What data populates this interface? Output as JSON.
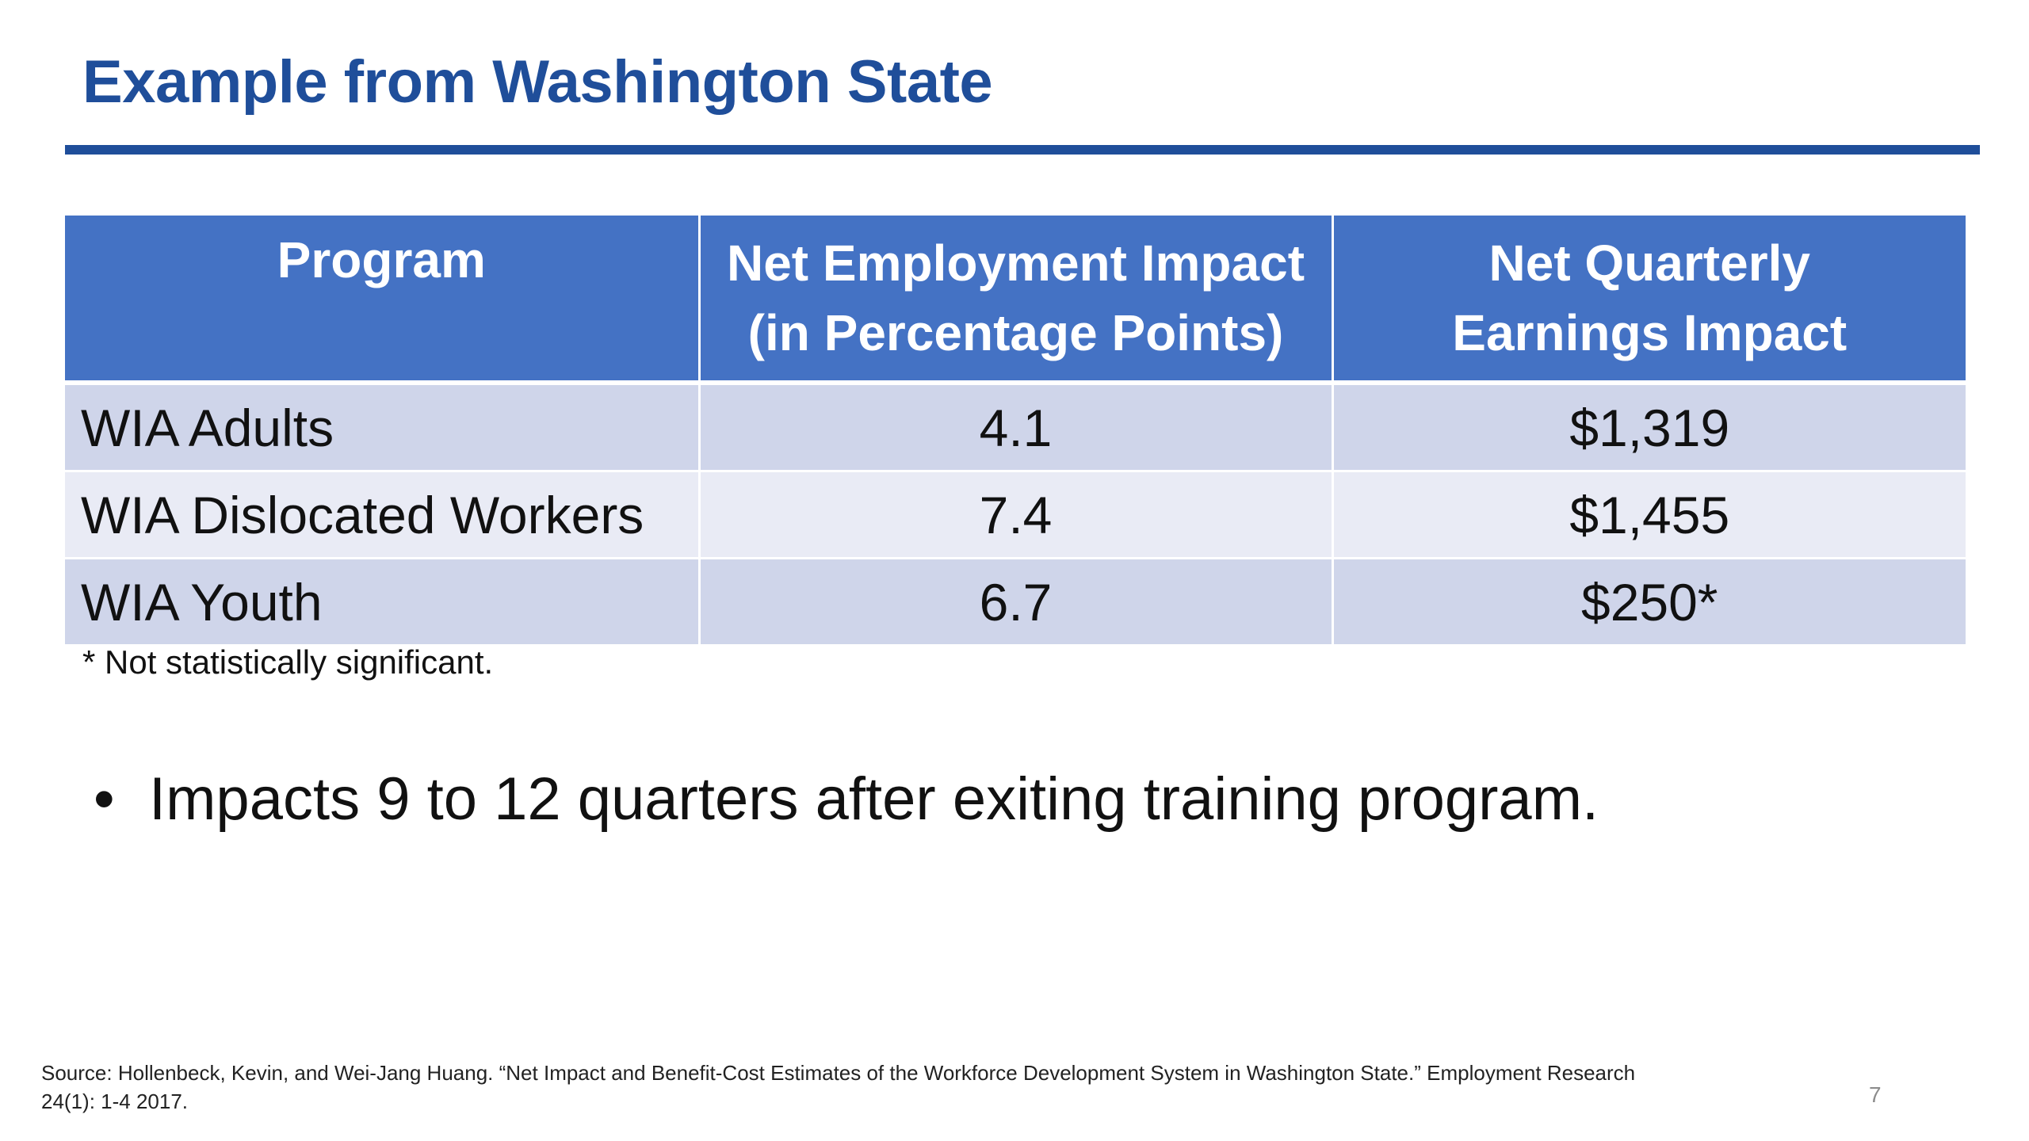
{
  "slide": {
    "title": "Example from Washington State",
    "table": {
      "headers": [
        [
          "Program"
        ],
        [
          "Net Employment Impact",
          "(in Percentage Points)"
        ],
        [
          "Net Quarterly",
          "Earnings Impact"
        ]
      ],
      "rows": [
        {
          "program": "WIA Adults",
          "employment": "4.1",
          "earnings": "$1,319"
        },
        {
          "program": "WIA Dislocated Workers",
          "employment": "7.4",
          "earnings": "$1,455"
        },
        {
          "program": "WIA Youth",
          "employment": "6.7",
          "earnings": "$250*"
        }
      ]
    },
    "footnote": "* Not statistically significant.",
    "bullet_symbol": "•",
    "bullet": "Impacts 9 to 12 quarters after exiting training program.",
    "source_line1": "Source: Hollenbeck, Kevin, and Wei-Jang Huang. “Net Impact and Benefit-Cost Estimates of the Workforce Development System in Washington State.” Employment Research",
    "source_line2": "24(1): 1-4 2017.",
    "page_number": "7"
  },
  "colors": {
    "title": "#1f4e9a",
    "header_bg": "#4472c4",
    "row_odd": "#cfd5ea",
    "row_even": "#e9ebf5"
  }
}
